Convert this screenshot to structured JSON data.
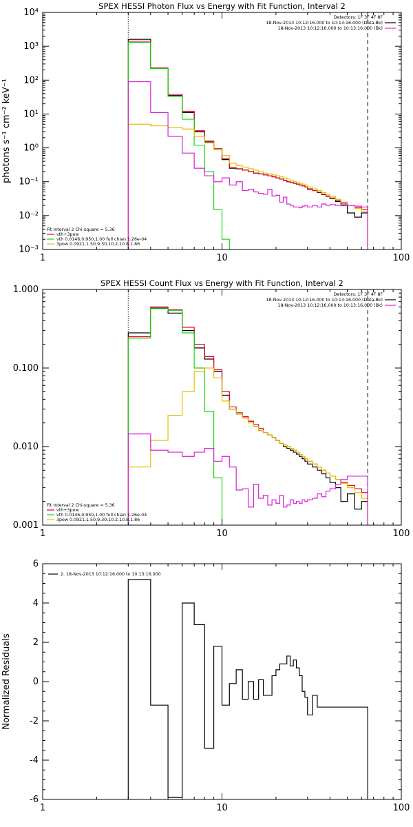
{
  "chart_data": [
    {
      "type": "line",
      "title": "SPEX HESSI Photon Flux vs Energy with Fit Function, Interval 2",
      "xlabel": "",
      "ylabel": "photons s⁻¹ cm⁻² keV⁻¹",
      "xscale": "log",
      "yscale": "log",
      "xlim": [
        1,
        100
      ],
      "ylim": [
        0.001,
        10000
      ],
      "x_ticks": [
        1,
        10,
        100
      ],
      "x_tick_labels": [
        "1",
        "10",
        "100"
      ],
      "y_ticks": [
        0.001,
        0.01,
        0.1,
        1,
        10,
        100,
        1000,
        10000
      ],
      "y_tick_labels": [
        "10⁻³",
        "10⁻²",
        "10⁻¹",
        "10⁰",
        "10¹",
        "10²",
        "10³",
        "10⁴"
      ],
      "grid": false,
      "vlines": [
        {
          "x": 3,
          "style": "dotted"
        },
        {
          "x": 65,
          "style": "dashed"
        }
      ],
      "header_lines": [
        {
          "text": "Detectors: 1F 3F 4F 8F",
          "color": "#000000"
        },
        {
          "text": "18-Nov-2013 10:12:16.000 to 10:13:16.000 (Data-Bk)",
          "color": "#000000"
        },
        {
          "text": "18-Nov-2013 10:12:16.000 to 10:13:16.000 (Bk)",
          "color": "#d81fd8"
        }
      ],
      "legend_lines": [
        {
          "text": "Fit Interval 2   Chi-square = 5.36",
          "color": "#000000"
        },
        {
          "text": "vth+3pow",
          "color": "#e8001c"
        },
        {
          "text": "vth 0.0146,0.950,1.00  full chian 1.26e-04",
          "color": "#12d812"
        },
        {
          "text": "3pow 0.0921,1.50,9.30,10.2,10.8,1.86",
          "color": "#e3c000"
        }
      ],
      "bin_edges": [
        3,
        4,
        5,
        6,
        7,
        8,
        9,
        10,
        11,
        12,
        13,
        14,
        15,
        16,
        17,
        18,
        19,
        20,
        21,
        22,
        23,
        24,
        25,
        26,
        27,
        28,
        29,
        30,
        32,
        34,
        36,
        38,
        40,
        43,
        46,
        50,
        55,
        60,
        65
      ],
      "series": [
        {
          "name": "",
          "color": "#000000",
          "values": [
            1600,
            220,
            35,
            11,
            3,
            1.5,
            0.9,
            0.45,
            0.25,
            0.24,
            0.22,
            0.2,
            0.18,
            0.17,
            0.16,
            0.15,
            0.14,
            0.13,
            0.12,
            0.11,
            0.1,
            0.095,
            0.09,
            0.085,
            0.08,
            0.075,
            0.07,
            0.06,
            0.055,
            0.048,
            0.042,
            0.037,
            0.032,
            0.026,
            0.02,
            0.012,
            0.009,
            0.012
          ]
        },
        {
          "name": "",
          "color": "#e8001c",
          "values": [
            1400,
            230,
            38,
            12,
            3.2,
            1.6,
            0.95,
            0.48,
            0.26,
            0.24,
            0.22,
            0.2,
            0.18,
            0.17,
            0.16,
            0.15,
            0.14,
            0.13,
            0.12,
            0.11,
            0.1,
            0.095,
            0.09,
            0.085,
            0.08,
            0.075,
            0.07,
            0.062,
            0.055,
            0.049,
            0.043,
            0.038,
            0.033,
            0.028,
            0.024,
            0.02,
            0.017,
            0.015
          ]
        },
        {
          "name": "",
          "color": "#12d812",
          "values": [
            1300,
            220,
            33,
            7,
            1.2,
            0.2,
            0.015,
            0.002,
            0.0009,
            0.0009,
            0.0009,
            0.0009,
            0.0009,
            0.0009,
            0.0009,
            0.0009,
            0.0009,
            0.0009,
            0.0009,
            0.0009,
            0.0009,
            0.0009,
            0.0009,
            0.0009,
            0.0009,
            0.0009,
            0.0009,
            0.0009,
            0.0009,
            0.0009,
            0.0009,
            0.0009,
            0.0009,
            0.0009,
            0.0009,
            0.0009,
            0.0009,
            0.0009
          ]
        },
        {
          "name": "",
          "color": "#e3c000",
          "values": [
            5,
            4.5,
            4,
            3.6,
            2.2,
            1.4,
            0.9,
            0.6,
            0.35,
            0.3,
            0.27,
            0.24,
            0.22,
            0.2,
            0.18,
            0.17,
            0.16,
            0.15,
            0.14,
            0.13,
            0.12,
            0.11,
            0.1,
            0.095,
            0.09,
            0.085,
            0.08,
            0.07,
            0.062,
            0.055,
            0.048,
            0.042,
            0.036,
            0.03,
            0.025,
            0.02,
            0.016,
            0.013
          ]
        },
        {
          "name": "",
          "color": "#d81fd8",
          "values": [
            90,
            11,
            2.2,
            0.7,
            0.25,
            0.15,
            0.1,
            0.13,
            0.08,
            0.1,
            0.055,
            0.06,
            0.05,
            0.045,
            0.043,
            0.06,
            0.038,
            0.04,
            0.025,
            0.035,
            0.022,
            0.02,
            0.018,
            0.018,
            0.017,
            0.019,
            0.02,
            0.018,
            0.02,
            0.018,
            0.022,
            0.02,
            0.021,
            0.02,
            0.022,
            0.02,
            0.019,
            0.018
          ]
        }
      ]
    },
    {
      "type": "line",
      "title": "SPEX HESSI Count Flux vs Energy with Fit Function, Interval 2",
      "xlabel": "",
      "ylabel": "",
      "xscale": "log",
      "yscale": "log",
      "xlim": [
        1,
        100
      ],
      "ylim": [
        0.001,
        1
      ],
      "x_ticks": [
        1,
        10,
        100
      ],
      "x_tick_labels": [
        "1",
        "10",
        "100"
      ],
      "y_ticks": [
        0.001,
        0.01,
        0.1,
        1
      ],
      "y_tick_labels": [
        "0.001",
        "0.010",
        "0.100",
        "1.000"
      ],
      "grid": false,
      "vlines": [
        {
          "x": 3,
          "style": "dotted"
        },
        {
          "x": 65,
          "style": "dashed"
        }
      ],
      "header_lines": [
        {
          "text": "Detectors: 1F 3F 4F 8F",
          "color": "#000000"
        },
        {
          "text": "18-Nov-2013 10:12:16.000 to 10:13:16.000 (Data-Bk)",
          "color": "#000000"
        },
        {
          "text": "18-Nov-2013 10:12:16.000 to 10:13:16.000 (Bk)",
          "color": "#d81fd8"
        }
      ],
      "legend_lines": [
        {
          "text": "Fit Interval 2   Chi-square = 5.36",
          "color": "#000000"
        },
        {
          "text": "vth+3pow",
          "color": "#e8001c"
        },
        {
          "text": "vth 0.0146,0.950,1.00  full chian 1.26e-04",
          "color": "#12d812"
        },
        {
          "text": "3pow 0.0921,1.50,9.30,10.2,10.8,1.86",
          "color": "#e3c000"
        }
      ],
      "bin_edges": [
        3,
        4,
        5,
        6,
        7,
        8,
        9,
        10,
        11,
        12,
        13,
        14,
        15,
        16,
        17,
        18,
        19,
        20,
        21,
        22,
        23,
        24,
        25,
        26,
        27,
        28,
        29,
        30,
        32,
        34,
        36,
        38,
        40,
        43,
        46,
        50,
        55,
        60,
        65
      ],
      "series": [
        {
          "name": "",
          "color": "#000000",
          "values": [
            0.28,
            0.58,
            0.5,
            0.3,
            0.18,
            0.13,
            0.09,
            0.045,
            0.03,
            0.026,
            0.024,
            0.021,
            0.018,
            0.016,
            0.015,
            0.014,
            0.013,
            0.012,
            0.011,
            0.01,
            0.0095,
            0.009,
            0.0085,
            0.008,
            0.0075,
            0.007,
            0.0065,
            0.006,
            0.0055,
            0.005,
            0.0045,
            0.004,
            0.0035,
            0.003,
            0.002,
            0.0025,
            0.0016,
            0.002
          ]
        },
        {
          "name": "",
          "color": "#e8001c",
          "values": [
            0.25,
            0.6,
            0.55,
            0.33,
            0.2,
            0.14,
            0.095,
            0.05,
            0.032,
            0.027,
            0.024,
            0.021,
            0.019,
            0.017,
            0.015,
            0.014,
            0.013,
            0.012,
            0.011,
            0.0105,
            0.01,
            0.0095,
            0.009,
            0.0085,
            0.008,
            0.0075,
            0.007,
            0.0065,
            0.006,
            0.0055,
            0.005,
            0.0046,
            0.0042,
            0.0038,
            0.0035,
            0.0032,
            0.0029,
            0.0026
          ]
        },
        {
          "name": "",
          "color": "#12d812",
          "values": [
            0.24,
            0.57,
            0.54,
            0.28,
            0.1,
            0.028,
            0.004,
            0.0009,
            0.0009,
            0.0009,
            0.0009,
            0.0009,
            0.0009,
            0.0009,
            0.0009,
            0.0009,
            0.0009,
            0.0009,
            0.0009,
            0.0009,
            0.0009,
            0.0009,
            0.0009,
            0.0009,
            0.0009,
            0.0009,
            0.0009,
            0.0009,
            0.0009,
            0.0009,
            0.0009,
            0.0009,
            0.0009,
            0.0009,
            0.0009,
            0.0009,
            0.0009,
            0.0009
          ]
        },
        {
          "name": "",
          "color": "#e3c000",
          "values": [
            0.0055,
            0.012,
            0.025,
            0.05,
            0.09,
            0.1,
            0.075,
            0.038,
            0.03,
            0.026,
            0.023,
            0.02,
            0.018,
            0.016,
            0.015,
            0.014,
            0.013,
            0.012,
            0.011,
            0.0105,
            0.01,
            0.0095,
            0.009,
            0.0085,
            0.008,
            0.0075,
            0.007,
            0.0065,
            0.006,
            0.0055,
            0.005,
            0.0046,
            0.0042,
            0.0038,
            0.0034,
            0.003,
            0.0026,
            0.0022
          ]
        },
        {
          "name": "",
          "color": "#d81fd8",
          "values": [
            0.0145,
            0.009,
            0.0085,
            0.0075,
            0.0085,
            0.0095,
            0.0065,
            0.0075,
            0.0055,
            0.0028,
            0.0029,
            0.0017,
            0.0033,
            0.0022,
            0.0024,
            0.0018,
            0.0021,
            0.0019,
            0.0024,
            0.0017,
            0.0018,
            0.0021,
            0.0019,
            0.002,
            0.0019,
            0.0021,
            0.002,
            0.0021,
            0.0022,
            0.0025,
            0.0023,
            0.0027,
            0.0029,
            0.0033,
            0.0038,
            0.0042,
            0.0042,
            0.0042
          ]
        }
      ]
    },
    {
      "type": "line",
      "title": "",
      "xlabel": "",
      "ylabel": "Normalized Residuals",
      "xscale": "log",
      "yscale": "linear",
      "xlim": [
        1,
        100
      ],
      "ylim": [
        -6,
        6
      ],
      "x_ticks": [
        1,
        10,
        100
      ],
      "x_tick_labels": [
        "1",
        "10",
        "100"
      ],
      "y_ticks": [
        -6,
        -4,
        -2,
        0,
        2,
        4,
        6
      ],
      "y_tick_labels": [
        "-6",
        "-4",
        "-2",
        "0",
        "2",
        "4",
        "6"
      ],
      "grid": false,
      "vlines": [],
      "header_lines": [],
      "legend_lines": [
        {
          "text": "2. 18-Nov-2013 10:12:16.000 to 10:13:16.000",
          "color": "#000000"
        }
      ],
      "bin_edges": [
        3,
        4,
        5,
        6,
        7,
        8,
        9,
        10,
        11,
        12,
        13,
        14,
        15,
        16,
        17,
        18,
        19,
        20,
        21,
        22,
        23,
        24,
        25,
        26,
        27,
        28,
        29,
        30,
        32,
        34,
        36,
        38,
        40,
        43,
        46,
        50,
        55,
        60,
        65
      ],
      "series": [
        {
          "name": "",
          "color": "#000000",
          "values": [
            5.2,
            -1.2,
            -5.9,
            4.0,
            2.9,
            -3.4,
            1.8,
            -1.2,
            -0.1,
            0.6,
            -0.9,
            0.0,
            -0.9,
            0.1,
            -0.7,
            -0.7,
            0.3,
            0.6,
            0.9,
            0.9,
            1.3,
            0.8,
            1.1,
            0.7,
            0.3,
            -0.5,
            -0.8,
            -1.7,
            -0.7,
            -1.3,
            -1.3,
            -1.3,
            -1.3,
            -1.3,
            -1.3,
            -1.3,
            -1.3,
            -1.3
          ]
        }
      ]
    }
  ]
}
